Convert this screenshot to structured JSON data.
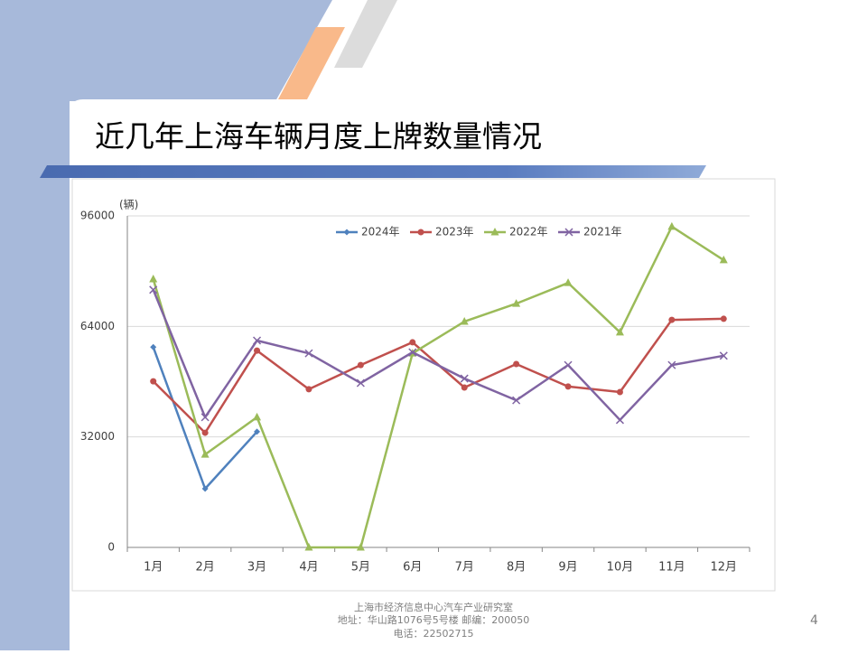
{
  "slide": {
    "title": "近几年上海车辆月度上牌数量情况",
    "page_number": "4",
    "footer": [
      "上海市经济信息中心汽车产业研究室",
      "地址：华山路1076号5号楼   邮编：200050",
      "电话：22502715"
    ]
  },
  "chart_data": {
    "type": "line",
    "y_label": "(辆)",
    "categories": [
      "1月",
      "2月",
      "3月",
      "4月",
      "5月",
      "6月",
      "7月",
      "8月",
      "9月",
      "10月",
      "11月",
      "12月"
    ],
    "series": [
      {
        "name": "2024年",
        "color": "#4f81bd",
        "marker": "diamond",
        "values": [
          58000,
          17000,
          33500,
          null,
          null,
          null,
          null,
          null,
          null,
          null,
          null,
          null
        ]
      },
      {
        "name": "2023年",
        "color": "#c0504d",
        "marker": "circle",
        "values": [
          48100,
          33200,
          57000,
          45800,
          52800,
          59400,
          46300,
          53100,
          46600,
          45000,
          65900,
          66200
        ]
      },
      {
        "name": "2022年",
        "color": "#9bbb59",
        "marker": "triangle",
        "values": [
          77700,
          26900,
          37700,
          0,
          0,
          56200,
          65400,
          70600,
          76600,
          62300,
          92900,
          83200
        ]
      },
      {
        "name": "2021年",
        "color": "#8064a2",
        "marker": "x",
        "values": [
          74600,
          37700,
          59900,
          56200,
          47600,
          56500,
          48900,
          42600,
          52800,
          36900,
          52800,
          55500
        ]
      }
    ],
    "ylim": [
      0,
      96000
    ],
    "yticks": [
      0,
      32000,
      64000,
      96000
    ],
    "grid": true,
    "legend": "top"
  }
}
